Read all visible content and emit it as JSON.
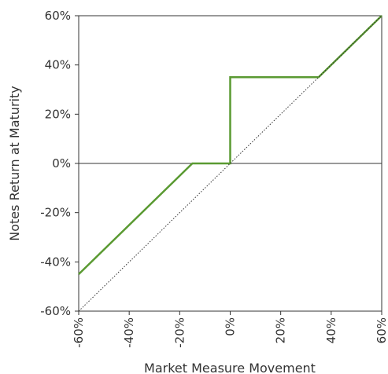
{
  "chart_data": {
    "type": "line",
    "title": "",
    "xlabel": "Market Measure Movement",
    "ylabel": "Notes Return at Maturity",
    "xlim": [
      -60,
      60
    ],
    "ylim": [
      -60,
      60
    ],
    "x_ticks": [
      -60,
      -40,
      -20,
      0,
      20,
      40,
      60
    ],
    "y_ticks": [
      -60,
      -40,
      -20,
      0,
      20,
      40,
      60
    ],
    "x_tick_labels": [
      "-60%",
      "-40%",
      "-20%",
      "0%",
      "20%",
      "40%",
      "60%"
    ],
    "y_tick_labels": [
      "-60%",
      "-40%",
      "-20%",
      "0%",
      "20%",
      "40%",
      "60%"
    ],
    "grid": false,
    "series": [
      {
        "style": "solid",
        "color": "#5a9a32",
        "points": [
          [
            -60,
            -45
          ],
          [
            -15,
            0
          ],
          [
            0,
            0
          ],
          [
            0,
            35
          ],
          [
            35,
            35
          ],
          [
            60,
            60
          ]
        ]
      },
      {
        "style": "dotted",
        "color": "#333333",
        "points": [
          [
            -60,
            -60
          ],
          [
            60,
            60
          ]
        ]
      }
    ],
    "zero_line": true
  }
}
